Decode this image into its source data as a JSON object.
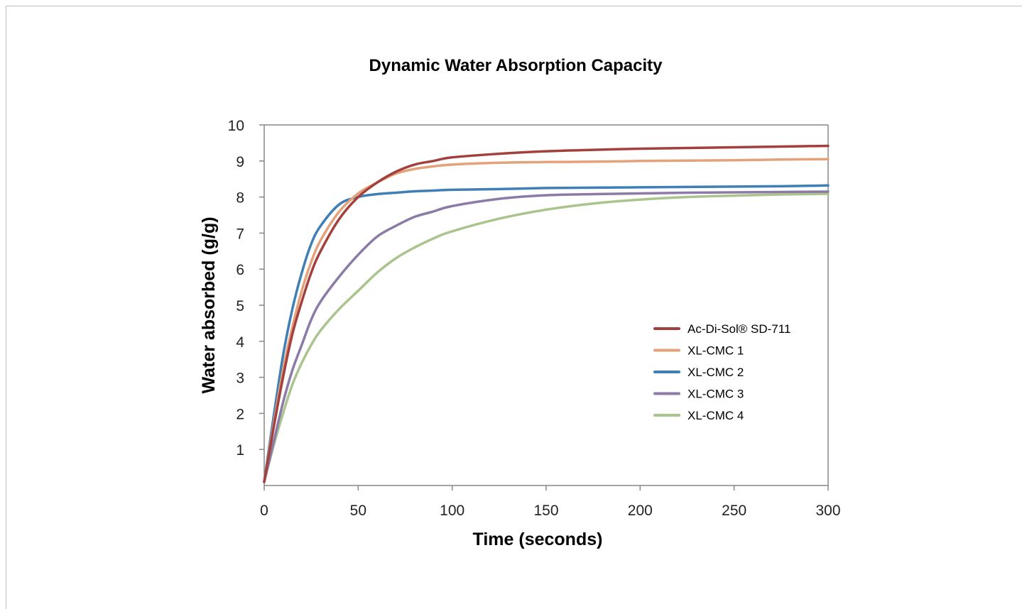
{
  "chart_data": {
    "type": "line",
    "title": "Dynamic Water Absorption Capacity",
    "xlabel": "Time (seconds)",
    "ylabel": "Water absorbed (g/g)",
    "xlim": [
      0,
      300
    ],
    "ylim": [
      0,
      10
    ],
    "x_ticks": [
      "0",
      "50",
      "100",
      "150",
      "200",
      "250",
      "300"
    ],
    "y_ticks": [
      "1",
      "2",
      "3",
      "4",
      "5",
      "6",
      "7",
      "8",
      "9",
      "10"
    ],
    "x": [
      0,
      5,
      10,
      15,
      20,
      25,
      30,
      40,
      50,
      60,
      70,
      80,
      90,
      100,
      125,
      150,
      175,
      200,
      225,
      250,
      275,
      300
    ],
    "legend_position": "center-right",
    "grid": false,
    "series": [
      {
        "name": "Ac-Di-Sol® SD-711",
        "color": "#a3403d",
        "values": [
          0.1,
          1.6,
          3.0,
          4.2,
          5.1,
          5.9,
          6.5,
          7.4,
          8.0,
          8.4,
          8.7,
          8.9,
          9.0,
          9.1,
          9.2,
          9.27,
          9.31,
          9.34,
          9.36,
          9.38,
          9.4,
          9.42
        ]
      },
      {
        "name": "XL-CMC 1",
        "color": "#e3a27a",
        "values": [
          0.1,
          1.7,
          3.2,
          4.4,
          5.4,
          6.2,
          6.8,
          7.6,
          8.1,
          8.4,
          8.65,
          8.78,
          8.85,
          8.9,
          8.95,
          8.97,
          8.98,
          9.0,
          9.01,
          9.02,
          9.04,
          9.05
        ]
      },
      {
        "name": "XL-CMC 2",
        "color": "#3f7fb5",
        "values": [
          0.1,
          1.9,
          3.6,
          4.9,
          5.9,
          6.7,
          7.2,
          7.8,
          8.0,
          8.08,
          8.12,
          8.16,
          8.18,
          8.2,
          8.22,
          8.25,
          8.26,
          8.27,
          8.28,
          8.29,
          8.3,
          8.32
        ]
      },
      {
        "name": "XL-CMC 3",
        "color": "#8c7ba6",
        "values": [
          0.1,
          1.2,
          2.3,
          3.2,
          3.9,
          4.6,
          5.1,
          5.8,
          6.4,
          6.9,
          7.2,
          7.45,
          7.6,
          7.75,
          7.95,
          8.05,
          8.08,
          8.1,
          8.12,
          8.13,
          8.14,
          8.15
        ]
      },
      {
        "name": "XL-CMC 4",
        "color": "#a9c48c",
        "values": [
          0.1,
          1.1,
          2.0,
          2.8,
          3.4,
          3.9,
          4.3,
          4.9,
          5.4,
          5.9,
          6.3,
          6.6,
          6.85,
          7.05,
          7.4,
          7.65,
          7.82,
          7.93,
          8.0,
          8.04,
          8.07,
          8.09
        ]
      }
    ]
  }
}
